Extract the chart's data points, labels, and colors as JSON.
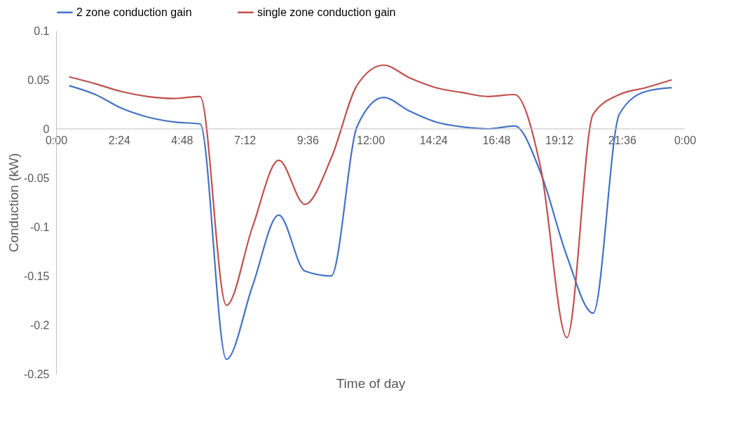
{
  "chart_data": {
    "type": "line",
    "xlabel": "Time of day",
    "ylabel": "Conduction (kW)",
    "x": [
      0.5,
      1.5,
      2.5,
      3.5,
      4.5,
      5.5,
      6.5,
      7.5,
      8.5,
      9.5,
      10.5,
      11.5,
      12.5,
      13.5,
      14.5,
      15.5,
      16.5,
      17.5,
      18.5,
      19.5,
      20.5,
      21.5,
      22.5,
      23.5
    ],
    "series": [
      {
        "name": "2 zone conduction gain",
        "color": "#4472c4",
        "values": [
          0.044,
          0.035,
          0.021,
          0.012,
          0.007,
          0.005,
          -0.235,
          -0.16,
          -0.088,
          -0.145,
          -0.15,
          0.003,
          0.032,
          0.018,
          0.007,
          0.002,
          0.0,
          0.003,
          -0.045,
          -0.13,
          -0.188,
          0.015,
          0.038,
          0.042
        ]
      },
      {
        "name": "single zone conduction gain",
        "color": "#c0504d",
        "values": [
          0.053,
          0.046,
          0.038,
          0.033,
          0.031,
          0.033,
          -0.18,
          -0.1,
          -0.032,
          -0.077,
          -0.03,
          0.045,
          0.065,
          0.052,
          0.042,
          0.037,
          0.033,
          0.035,
          -0.04,
          -0.213,
          0.015,
          0.035,
          0.042,
          0.05
        ]
      }
    ],
    "xlim": [
      0,
      24
    ],
    "xticks": [
      {
        "value": 0,
        "label": "0:00"
      },
      {
        "value": 2.4,
        "label": "2:24"
      },
      {
        "value": 4.8,
        "label": "4:48"
      },
      {
        "value": 7.2,
        "label": "7:12"
      },
      {
        "value": 9.6,
        "label": "9:36"
      },
      {
        "value": 12,
        "label": "12:00"
      },
      {
        "value": 14.4,
        "label": "14:24"
      },
      {
        "value": 16.8,
        "label": "16:48"
      },
      {
        "value": 19.2,
        "label": "19:12"
      },
      {
        "value": 21.6,
        "label": "21:36"
      },
      {
        "value": 24,
        "label": "0:00"
      }
    ],
    "ylim": [
      -0.25,
      0.1
    ],
    "yticks": [
      -0.25,
      -0.2,
      -0.15,
      -0.1,
      -0.05,
      0,
      0.05,
      0.1
    ],
    "legend": "top",
    "grid": false,
    "marker": "none",
    "line_style": "solid"
  }
}
